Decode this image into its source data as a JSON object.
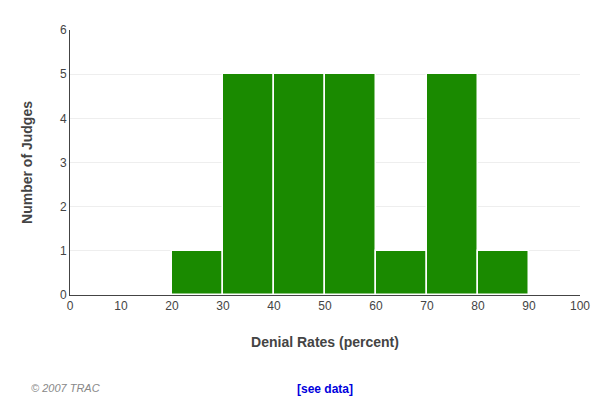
{
  "chart_data": {
    "type": "histogram",
    "xlabel": "Denial Rates (percent)",
    "ylabel": "Number of Judges",
    "bins": [
      0,
      10,
      20,
      30,
      40,
      50,
      60,
      70,
      80,
      90,
      100
    ],
    "values": [
      0,
      0,
      1,
      5,
      5,
      5,
      1,
      5,
      1,
      0
    ],
    "color": "#1A8A00",
    "xlim": [
      0,
      100
    ],
    "ylim": [
      0,
      6
    ],
    "xticks": [
      0,
      10,
      20,
      30,
      40,
      50,
      60,
      70,
      80,
      90,
      100
    ],
    "yticks": [
      0,
      1,
      2,
      3,
      4,
      5,
      6
    ],
    "grid": "y",
    "annotations": [
      "© 2007 TRAC",
      "[see data]"
    ]
  }
}
